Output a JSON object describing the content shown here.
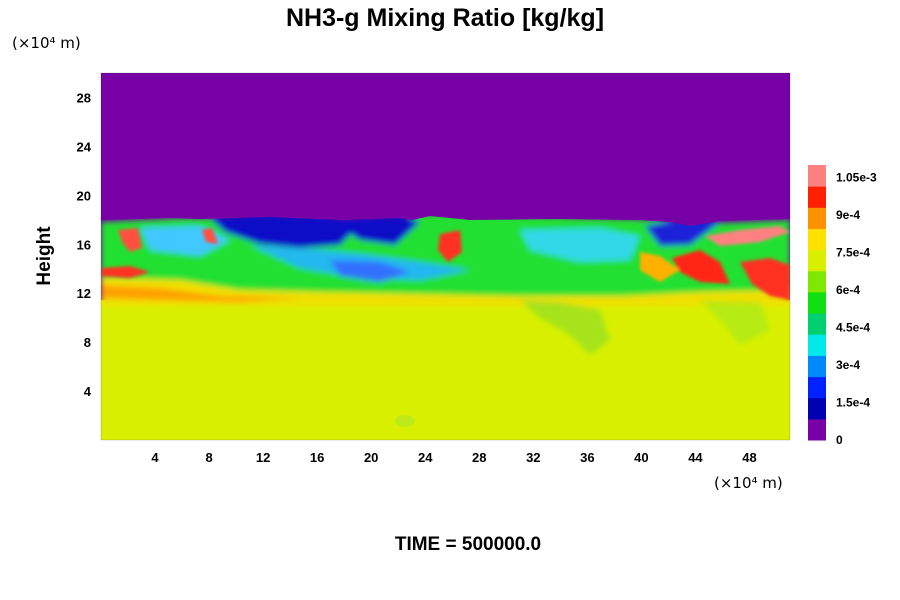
{
  "chart_data": {
    "type": "heatmap",
    "title": "NH3-g Mixing Ratio [kg/kg]",
    "xlabel": "",
    "ylabel": "Height",
    "x_unit": "(×10⁴ m)",
    "y_unit": "(×10⁴ m)",
    "xlim": [
      0,
      51
    ],
    "ylim": [
      0,
      30
    ],
    "x_ticks": [
      4,
      8,
      12,
      16,
      20,
      24,
      28,
      32,
      36,
      40,
      44,
      48
    ],
    "x_tick_labels": [
      "4",
      "8",
      "12",
      "16",
      "20",
      "24",
      "28",
      "32",
      "36",
      "40",
      "44",
      "48"
    ],
    "y_ticks": [
      4,
      8,
      12,
      16,
      20,
      24,
      28
    ],
    "y_tick_labels": [
      "4",
      "8",
      "12",
      "16",
      "20",
      "24",
      "28"
    ],
    "colorbar": {
      "min": 0,
      "max": 0.0011,
      "ticks": [
        0,
        0.00015,
        0.0003,
        0.00045,
        0.0006,
        0.00075,
        0.0009,
        0.00105
      ],
      "tick_labels": [
        "0",
        "1.5e-4",
        "3e-4",
        "4.5e-4",
        "6e-4",
        "7.5e-4",
        "9e-4",
        "1.05e-3"
      ],
      "colors": [
        "#7700a6",
        "#0000b0",
        "#0022ff",
        "#0088ff",
        "#00e8e8",
        "#00d070",
        "#10e010",
        "#80e800",
        "#d8f000",
        "#ffe000",
        "#ff9000",
        "#ff2000",
        "#ff8080"
      ]
    },
    "field": {
      "background_upper_value": 0,
      "background_lower_value": 0.00073,
      "lower_layer_top_y": 11,
      "upper_layer_bottom_y": 18,
      "mixing_zone": "12-18 turbulent layer with values between 1.5e-4 and 1.05e-3"
    },
    "grid": false,
    "legend": "colorbar-right"
  },
  "footer": {
    "time_label": "TIME = 500000.0"
  }
}
